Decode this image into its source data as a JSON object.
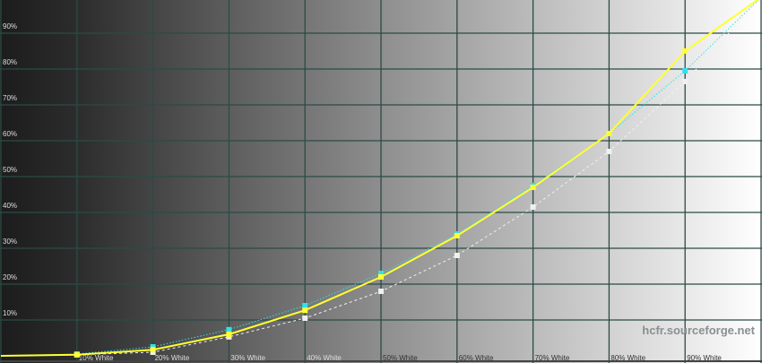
{
  "chart_data": {
    "type": "line",
    "title": "",
    "xlabel": "",
    "ylabel": "",
    "x": [
      0,
      10,
      20,
      30,
      40,
      50,
      60,
      70,
      80,
      90,
      100
    ],
    "x_tick_labels": [
      "",
      "10% White",
      "20% White",
      "30% White",
      "40% White",
      "50% White",
      "60% White",
      "70% White",
      "80% White",
      "90% White",
      ""
    ],
    "y_tick_labels": [
      "10%",
      "20%",
      "30%",
      "40%",
      "50%",
      "60%",
      "70%",
      "80%",
      "90%"
    ],
    "y_ticks": [
      10,
      20,
      30,
      40,
      50,
      60,
      70,
      80,
      90
    ],
    "xlim": [
      0,
      100
    ],
    "ylim": [
      0,
      100
    ],
    "grid": true,
    "series": [
      {
        "color": "#ffff33",
        "style": "solid",
        "values": [
          0,
          0.3,
          1.7,
          6,
          12.7,
          22,
          33.5,
          47,
          62,
          85,
          100
        ]
      },
      {
        "color": "#33e0e8",
        "style": "dotted",
        "values": [
          0,
          0.5,
          2.5,
          7.3,
          14,
          23,
          34,
          47.5,
          62,
          79.5,
          100
        ]
      },
      {
        "color": "#f0f0f0",
        "style": "dashed",
        "values": [
          0,
          0.3,
          1,
          5.3,
          10.5,
          18,
          28,
          41.5,
          57,
          76.5,
          100
        ]
      }
    ]
  },
  "watermark": "hcfr.sourceforge.net",
  "colors": {
    "grid": "#2b4b45",
    "background_dark": "#1c1c1c",
    "background_light": "#ffffff"
  }
}
